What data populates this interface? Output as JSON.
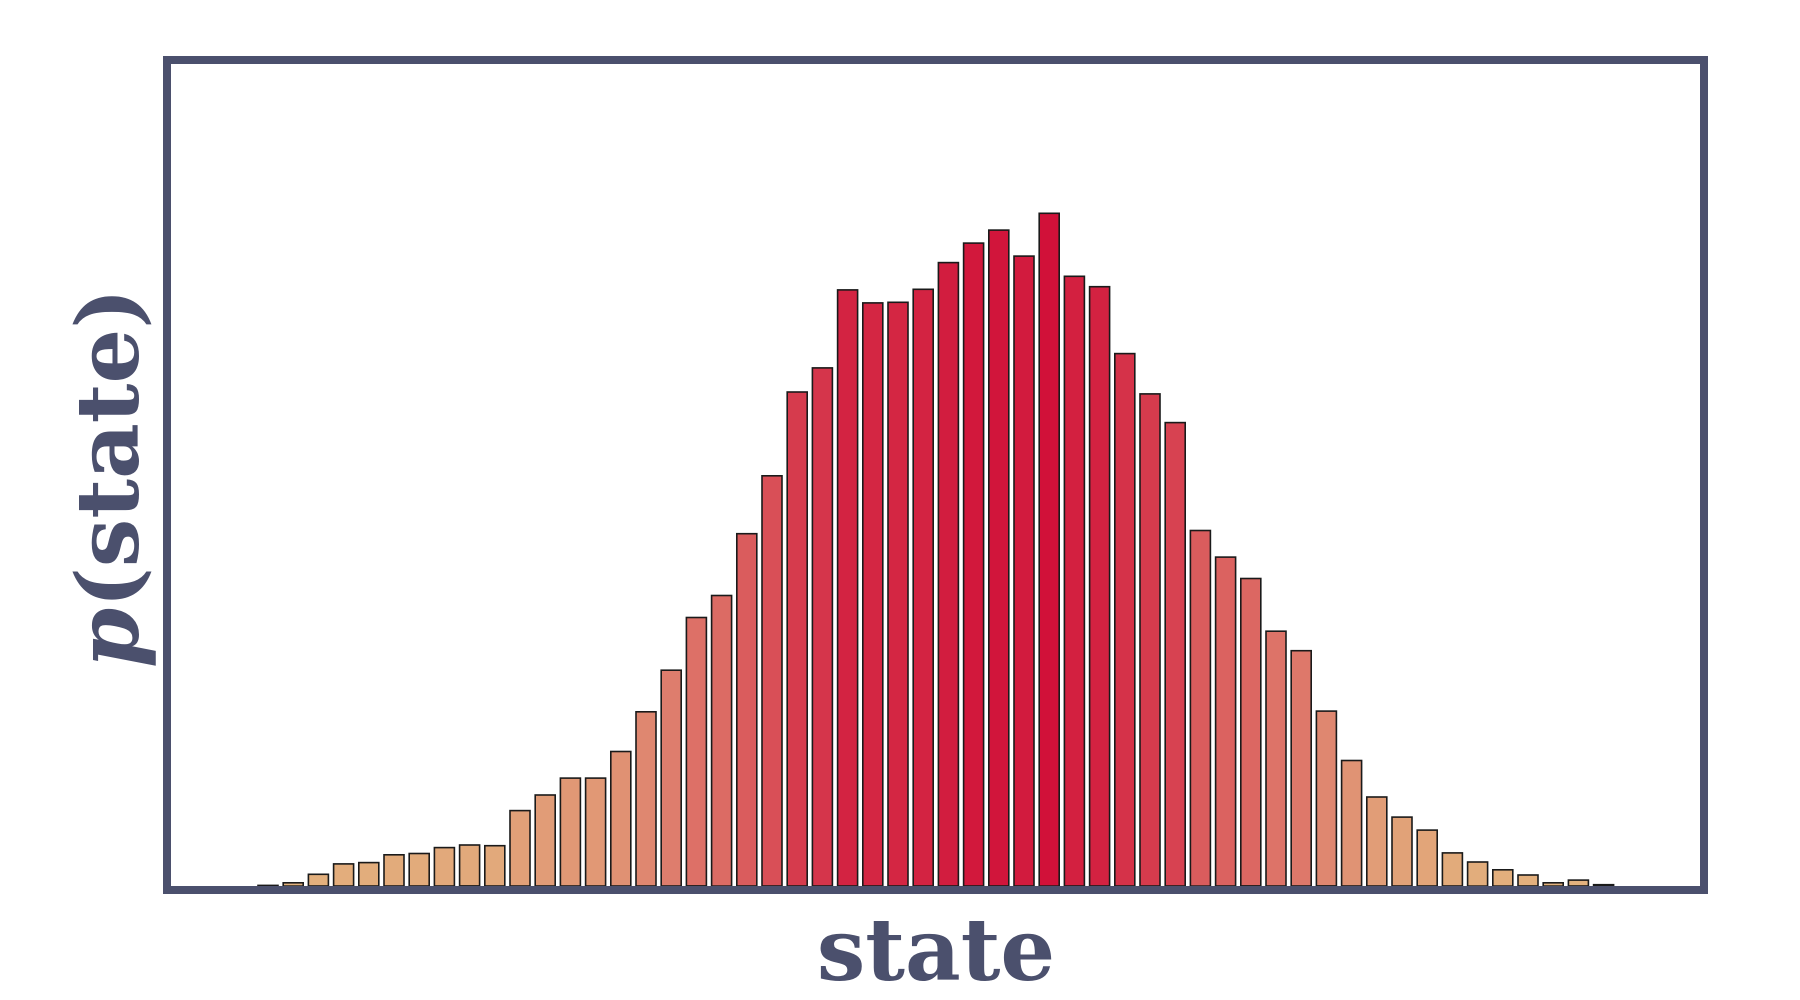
{
  "chart_data": {
    "type": "bar",
    "title": "",
    "xlabel": "state",
    "ylabel": "p(state)",
    "ylabel_symbol": "p",
    "ylabel_rest": "(state)",
    "grid": false,
    "legend": "none",
    "ticks_visible": false,
    "frame_color": "#4b506d",
    "label_color": "#4b506d",
    "bar_edge_color": "#1a1a1a",
    "color_low": "#e3b37e",
    "color_mid": "#de7b6c",
    "color_high": "#d11139",
    "ylim": [
      0,
      100
    ],
    "values": [
      0.1,
      0.5,
      1.8,
      3.4,
      3.6,
      4.8,
      5.0,
      5.9,
      6.3,
      6.2,
      11.6,
      14.0,
      16.6,
      16.6,
      20.7,
      26.8,
      33.2,
      41.3,
      44.7,
      54.2,
      63.1,
      76.0,
      79.7,
      91.7,
      89.7,
      89.8,
      91.8,
      95.9,
      98.9,
      100.9,
      96.9,
      103.5,
      93.8,
      92.2,
      81.9,
      75.7,
      71.3,
      54.7,
      50.6,
      47.3,
      39.2,
      36.2,
      26.9,
      19.3,
      13.7,
      10.6,
      8.6,
      5.1,
      3.7,
      2.5,
      1.7,
      0.5,
      0.9,
      0.2
    ]
  }
}
